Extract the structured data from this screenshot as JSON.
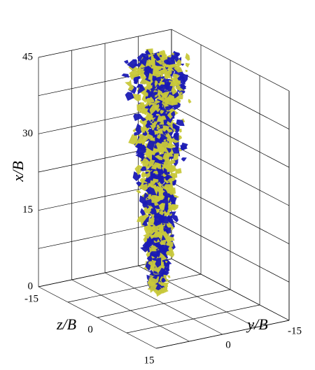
{
  "chart_data": {
    "type": "isosurface3d",
    "x_label": "x/B",
    "y_label": "y/B",
    "z_label": "z/B",
    "xlim": [
      0,
      45
    ],
    "xticks": [
      0,
      15,
      30,
      45
    ],
    "ylim": [
      -15,
      15
    ],
    "yticks": [
      -15,
      0
    ],
    "zlim": [
      -15,
      15
    ],
    "zticks": [
      -15,
      0,
      15
    ],
    "grid": true,
    "colors": [
      "#1a1ab4",
      "#c8c83a"
    ]
  }
}
